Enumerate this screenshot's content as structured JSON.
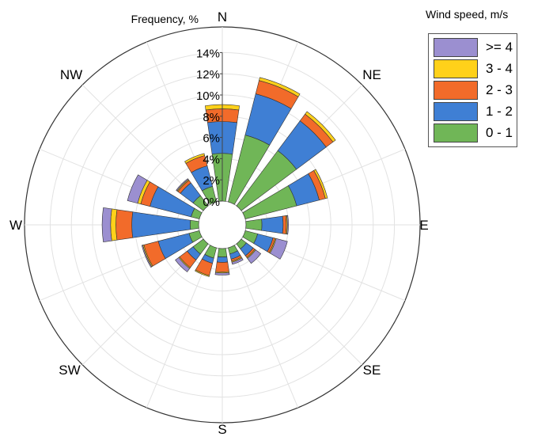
{
  "chart_data": {
    "type": "polar-stacked-bar",
    "title": "Frequency, %",
    "radial_ticks": [
      "0%",
      "2%",
      "4%",
      "6%",
      "8%",
      "10%",
      "12%",
      "14%"
    ],
    "radial_range": [
      0,
      14
    ],
    "directions": [
      "N",
      "NNE",
      "NE",
      "ENE",
      "E",
      "ESE",
      "SE",
      "SSE",
      "S",
      "SSW",
      "SW",
      "WSW",
      "W",
      "WNW",
      "NW",
      "NNW"
    ],
    "direction_labels": [
      "N",
      "NE",
      "E",
      "SE",
      "S",
      "SW",
      "W",
      "NW"
    ],
    "legend_title": "Wind speed, m/s",
    "legend_placement": "top-right",
    "series": [
      {
        "name": "0 - 1",
        "color": "#70b657",
        "values": [
          4.5,
          6.5,
          6.5,
          5.0,
          1.5,
          1.2,
          0.6,
          0.6,
          0.8,
          1.0,
          1.2,
          1.0,
          0.8,
          0.8,
          1.2,
          1.5
        ]
      },
      {
        "name": "1 - 2",
        "color": "#3f7fd4",
        "values": [
          3.0,
          4.0,
          3.5,
          2.2,
          2.0,
          1.5,
          0.8,
          0.5,
          0.5,
          0.5,
          0.7,
          3.0,
          5.5,
          4.0,
          1.5,
          2.0
        ]
      },
      {
        "name": "2 - 3",
        "color": "#f26b2a",
        "values": [
          1.2,
          1.3,
          0.8,
          0.6,
          0.3,
          0.2,
          0.2,
          0.2,
          0.9,
          1.2,
          0.9,
          1.4,
          1.5,
          0.9,
          0.3,
          1.0
        ]
      },
      {
        "name": "3 - 4",
        "color": "#ffd11a",
        "values": [
          0.4,
          0.3,
          0.3,
          0.2,
          0.1,
          0.1,
          0.1,
          0.1,
          0.1,
          0.1,
          0.1,
          0.1,
          0.5,
          0.3,
          0.1,
          0.2
        ]
      },
      {
        "name": ">= 4",
        "color": "#9b8fd0",
        "values": [
          0.0,
          0.0,
          0.0,
          0.0,
          0.1,
          1.1,
          0.6,
          0.2,
          0.2,
          0.0,
          0.4,
          0.1,
          0.8,
          1.0,
          0.1,
          0.0
        ]
      }
    ],
    "grid": true
  }
}
